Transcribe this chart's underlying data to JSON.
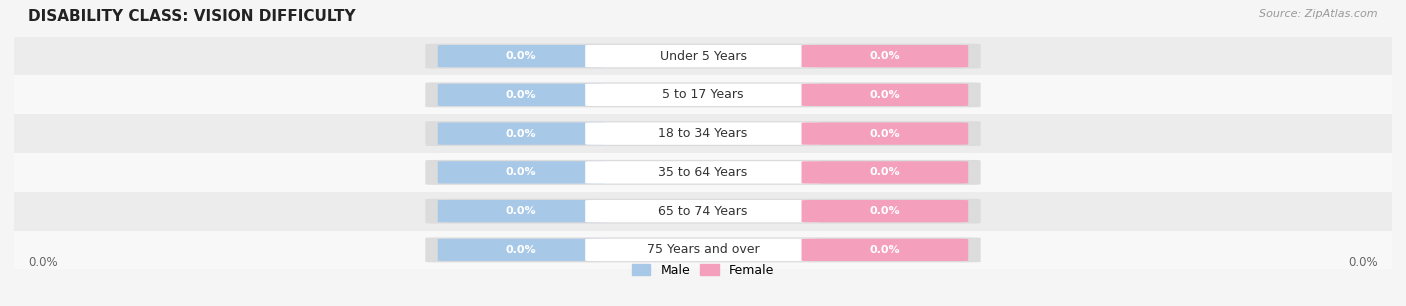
{
  "title": "DISABILITY CLASS: VISION DIFFICULTY",
  "source": "Source: ZipAtlas.com",
  "categories": [
    "Under 5 Years",
    "5 to 17 Years",
    "18 to 34 Years",
    "35 to 64 Years",
    "65 to 74 Years",
    "75 Years and over"
  ],
  "male_values": [
    0.0,
    0.0,
    0.0,
    0.0,
    0.0,
    0.0
  ],
  "female_values": [
    0.0,
    0.0,
    0.0,
    0.0,
    0.0,
    0.0
  ],
  "male_color": "#a8c8e8",
  "female_color": "#f4a0bc",
  "bar_bg_color": "#e8e8e8",
  "title_fontsize": 11,
  "source_fontsize": 8,
  "label_fontsize": 8,
  "category_fontsize": 9,
  "legend_fontsize": 9,
  "tick_fontsize": 8.5,
  "x_left_label": "0.0%",
  "x_right_label": "0.0%",
  "bg_color": "#f5f5f5",
  "stripe_colors": [
    "#ececec",
    "#f8f8f8"
  ]
}
